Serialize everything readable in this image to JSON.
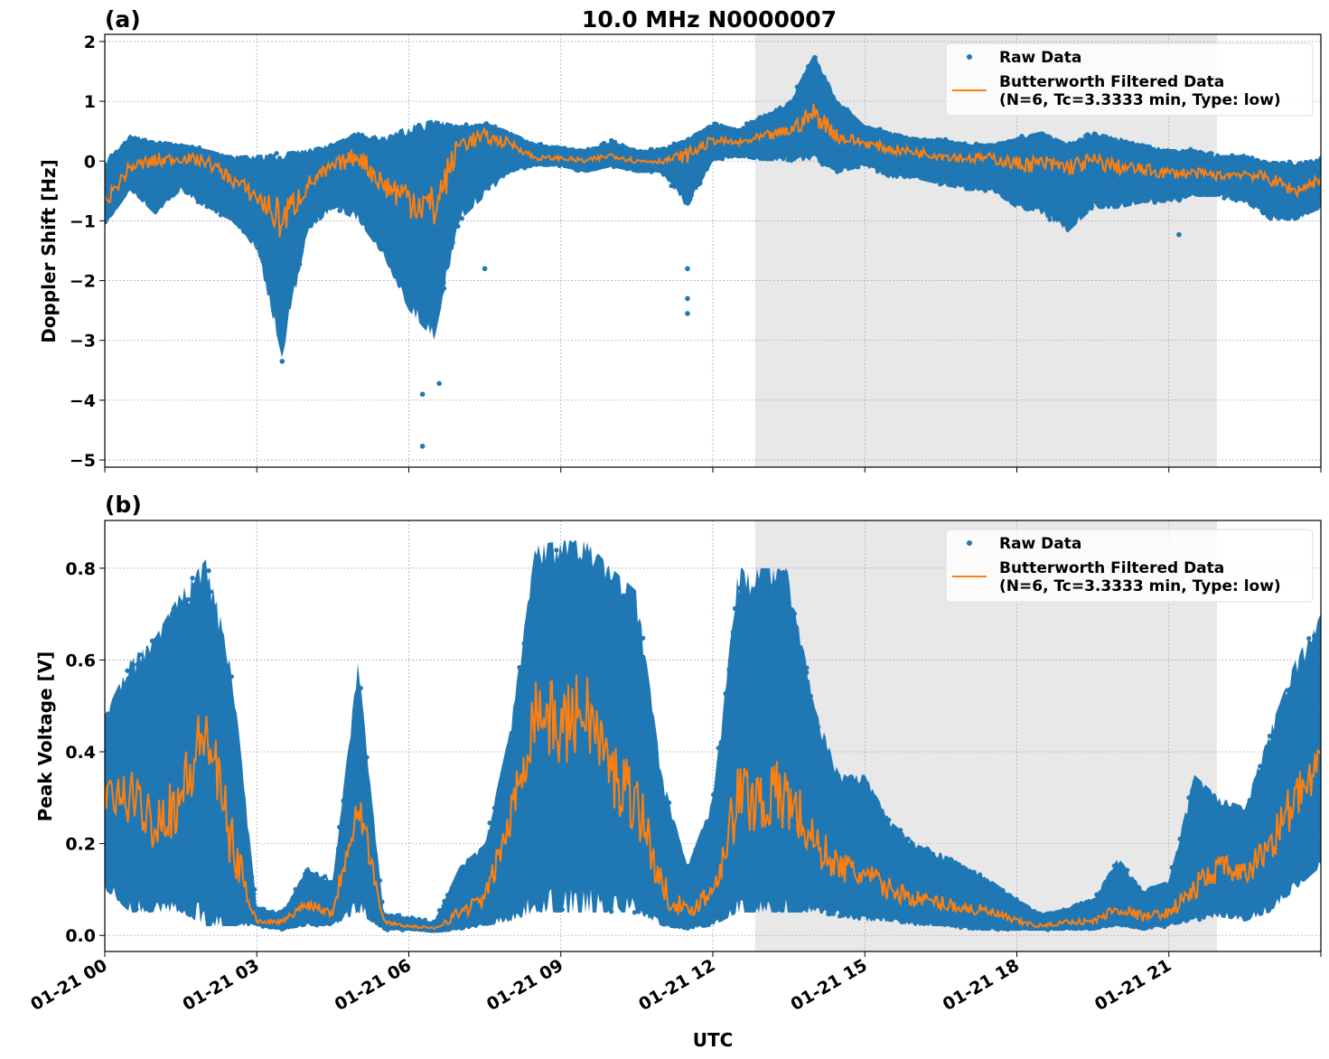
{
  "chart_data": [
    {
      "type": "scatter",
      "panel_label": "(a)",
      "title": "10.0 MHz N0000007",
      "xlabel": "",
      "ylabel": "Doppler Shift [Hz]",
      "ylim": [
        -5.12,
        2.12
      ],
      "yticks": [
        2,
        1,
        0,
        -1,
        -2,
        -3,
        -4,
        -5
      ],
      "ytick_labels": [
        "2",
        "1",
        "0",
        "−1",
        "−2",
        "−3",
        "−4",
        "−5"
      ],
      "xlim": [
        "01-21 00:00",
        "01-22 00:00"
      ],
      "grid": true,
      "legend": "top-right",
      "shaded_span": [
        "01-21 12:50",
        "01-21 21:57"
      ],
      "x": [
        "00:00",
        "00:30",
        "01:00",
        "01:30",
        "02:00",
        "02:30",
        "03:00",
        "03:30",
        "04:00",
        "04:30",
        "05:00",
        "05:30",
        "06:00",
        "06:30",
        "07:00",
        "07:30",
        "08:00",
        "08:30",
        "09:00",
        "09:30",
        "10:00",
        "10:30",
        "11:00",
        "11:30",
        "12:00",
        "12:30",
        "13:00",
        "13:30",
        "14:00",
        "14:30",
        "15:00",
        "15:30",
        "16:00",
        "16:30",
        "17:00",
        "17:30",
        "18:00",
        "18:30",
        "19:00",
        "19:30",
        "20:00",
        "20:30",
        "21:00",
        "21:30",
        "22:00",
        "22:30",
        "23:00",
        "23:30",
        "24:00"
      ],
      "series": [
        {
          "name": "Butterworth Filtered Data\n(N=6, Tc=3.3333 min, Type: low)",
          "kind": "line",
          "color": "#ff7f0e",
          "values": [
            -0.7,
            -0.1,
            0.0,
            0.05,
            0.0,
            -0.3,
            -0.6,
            -1.0,
            -0.4,
            -0.1,
            0.1,
            -0.4,
            -0.6,
            -0.8,
            0.3,
            0.4,
            0.3,
            0.05,
            0.05,
            0.0,
            0.1,
            0.0,
            0.0,
            0.1,
            0.35,
            0.3,
            0.4,
            0.5,
            0.8,
            0.4,
            0.3,
            0.2,
            0.15,
            0.1,
            0.05,
            0.05,
            -0.05,
            -0.05,
            -0.1,
            0.0,
            -0.1,
            -0.15,
            -0.2,
            -0.2,
            -0.25,
            -0.2,
            -0.3,
            -0.5,
            -0.3
          ]
        },
        {
          "name": "Raw Data",
          "kind": "scatter",
          "color": "#1f77b4",
          "min": [
            -1.1,
            -0.5,
            -0.9,
            -0.5,
            -0.8,
            -1.0,
            -1.5,
            -3.3,
            -1.2,
            -0.8,
            -1.0,
            -1.6,
            -2.5,
            -3.0,
            -1.0,
            -0.6,
            -0.2,
            -0.1,
            -0.1,
            -0.2,
            -0.1,
            -0.2,
            -0.2,
            -0.8,
            0.0,
            0.05,
            0.0,
            0.0,
            0.0,
            -0.2,
            -0.1,
            -0.3,
            -0.3,
            -0.4,
            -0.5,
            -0.5,
            -0.8,
            -0.9,
            -1.2,
            -0.8,
            -0.8,
            -0.7,
            -0.7,
            -0.6,
            -0.6,
            -0.7,
            -1.0,
            -1.0,
            -0.8
          ],
          "max": [
            0.0,
            0.45,
            0.35,
            0.3,
            0.2,
            0.1,
            0.1,
            0.15,
            0.2,
            0.3,
            0.5,
            0.4,
            0.6,
            0.7,
            0.6,
            0.65,
            0.5,
            0.3,
            0.25,
            0.2,
            0.35,
            0.2,
            0.2,
            0.4,
            0.65,
            0.55,
            0.8,
            1.0,
            1.8,
            1.0,
            0.6,
            0.5,
            0.4,
            0.4,
            0.3,
            0.3,
            0.4,
            0.5,
            0.3,
            0.5,
            0.4,
            0.3,
            0.2,
            0.2,
            0.1,
            0.1,
            0.0,
            0.0,
            0.05
          ],
          "outliers": [
            [
              6.27,
              -4.77
            ],
            [
              6.27,
              -3.9
            ],
            [
              6.6,
              -3.72
            ],
            [
              3.5,
              -3.35
            ],
            [
              11.5,
              -2.55
            ],
            [
              11.5,
              -2.3
            ],
            [
              11.5,
              -1.8
            ],
            [
              7.5,
              -1.8
            ],
            [
              21.2,
              -1.23
            ]
          ]
        }
      ]
    },
    {
      "type": "scatter",
      "panel_label": "(b)",
      "title": "",
      "xlabel": "UTC",
      "ylabel": "Peak Voltage [V]",
      "ylim": [
        -0.035,
        0.904
      ],
      "yticks": [
        0.0,
        0.2,
        0.4,
        0.6,
        0.8
      ],
      "ytick_labels": [
        "0.0",
        "0.2",
        "0.4",
        "0.6",
        "0.8"
      ],
      "xticks": [
        "01-21 00",
        "01-21 03",
        "01-21 06",
        "01-21 09",
        "01-21 12",
        "01-21 15",
        "01-21 18",
        "01-21 21"
      ],
      "xlim": [
        "01-21 00:00",
        "01-22 00:00"
      ],
      "grid": true,
      "legend": "top-right",
      "shaded_span": [
        "01-21 12:50",
        "01-21 21:57"
      ],
      "series": [
        {
          "name": "Butterworth Filtered Data\n(N=6, Tc=3.3333 min, Type: low)",
          "kind": "line",
          "color": "#ff7f0e",
          "values": [
            0.3,
            0.3,
            0.25,
            0.3,
            0.45,
            0.2,
            0.03,
            0.03,
            0.07,
            0.05,
            0.3,
            0.03,
            0.02,
            0.015,
            0.05,
            0.08,
            0.25,
            0.5,
            0.45,
            0.5,
            0.35,
            0.3,
            0.1,
            0.05,
            0.1,
            0.3,
            0.3,
            0.3,
            0.2,
            0.15,
            0.13,
            0.1,
            0.08,
            0.07,
            0.06,
            0.05,
            0.03,
            0.02,
            0.03,
            0.03,
            0.06,
            0.04,
            0.05,
            0.1,
            0.15,
            0.13,
            0.2,
            0.3,
            0.35
          ]
        },
        {
          "name": "Raw Data",
          "kind": "scatter",
          "color": "#1f77b4",
          "min": [
            0.1,
            0.05,
            0.05,
            0.05,
            0.02,
            0.02,
            0.02,
            0.01,
            0.02,
            0.02,
            0.05,
            0.01,
            0.01,
            0.005,
            0.01,
            0.02,
            0.03,
            0.05,
            0.05,
            0.05,
            0.05,
            0.05,
            0.02,
            0.01,
            0.02,
            0.05,
            0.05,
            0.05,
            0.05,
            0.04,
            0.03,
            0.03,
            0.02,
            0.02,
            0.01,
            0.01,
            0.01,
            0.01,
            0.01,
            0.01,
            0.02,
            0.01,
            0.02,
            0.03,
            0.04,
            0.03,
            0.05,
            0.1,
            0.15
          ],
          "max": [
            0.48,
            0.6,
            0.65,
            0.75,
            0.82,
            0.6,
            0.06,
            0.05,
            0.15,
            0.12,
            0.6,
            0.05,
            0.04,
            0.03,
            0.15,
            0.2,
            0.45,
            0.85,
            0.86,
            0.86,
            0.8,
            0.75,
            0.35,
            0.15,
            0.3,
            0.8,
            0.8,
            0.8,
            0.5,
            0.35,
            0.35,
            0.25,
            0.2,
            0.18,
            0.15,
            0.12,
            0.08,
            0.05,
            0.06,
            0.08,
            0.17,
            0.1,
            0.12,
            0.35,
            0.3,
            0.28,
            0.45,
            0.6,
            0.7
          ]
        }
      ]
    }
  ],
  "legend": {
    "raw_label": "Raw Data",
    "filtered_label_1": "Butterworth Filtered Data",
    "filtered_label_2": "(N=6, Tc=3.3333 min, Type: low)"
  },
  "colors": {
    "raw": "#1f77b4",
    "filtered": "#ff7f0e",
    "shade": "#e8e8e8"
  }
}
